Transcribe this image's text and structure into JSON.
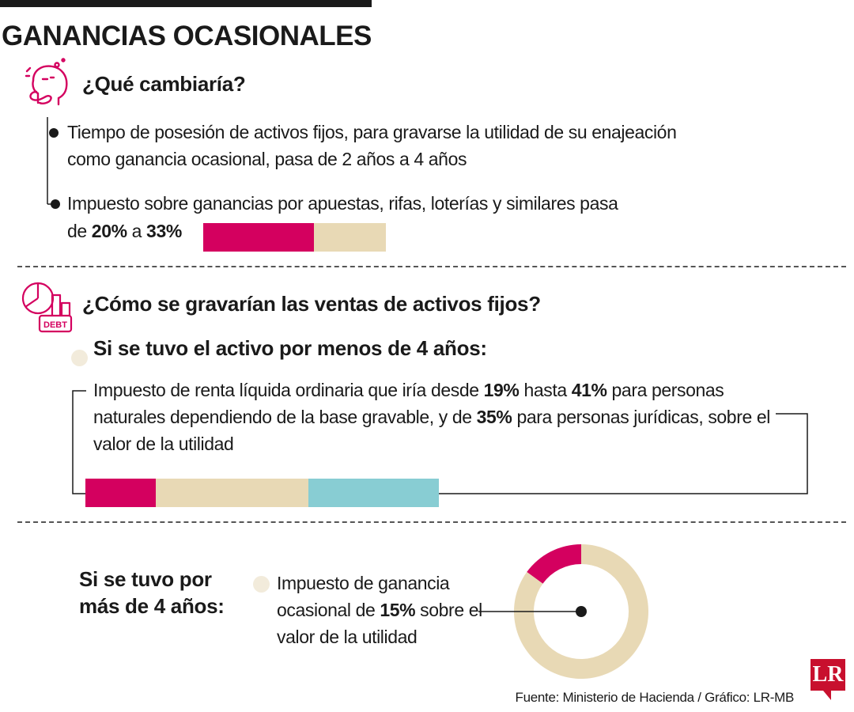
{
  "title": "GANANCIAS OCASIONALES",
  "section1": {
    "question": "¿Qué cambiaría?",
    "item1": "Tiempo de posesión de activos fijos, para gravarse la utilidad de su enajeación como ganancia ocasional, pasa de 2 años a 4 años",
    "item2_text": "Impuesto sobre ganancias por apuestas, rifas, loterías y similares pasa",
    "item2_de": "de",
    "item2_from": "20%",
    "item2_a": "a",
    "item2_to": "33%"
  },
  "section2": {
    "question": "¿Cómo se gravarían las ventas de activos fijos?",
    "icon_label": "DEBT",
    "subtitle": "Si se tuvo el activo por menos de 4 años:",
    "text_parts": {
      "p1": "Impuesto de renta líquida ordinaria que iría desde ",
      "v1": "19%",
      "p2": " hasta ",
      "v2": "41%",
      "p3": " para personas naturales dependiendo de la base gravable, y de ",
      "v3": "35%",
      "p4": " para personas jurídicas, sobre el valor de la utilidad"
    }
  },
  "section3": {
    "subtitle_line1": "Si se tuvo por",
    "subtitle_line2": "más de 4 años:",
    "text_parts": {
      "p1": "Impuesto de ganancia ocasional de ",
      "v1": "15%",
      "p2": " sobre el valor de la utilidad"
    }
  },
  "source": "Fuente: Ministerio de Hacienda / Gráfico: LR-MB",
  "logo": "LR",
  "colors": {
    "magenta": "#d4005f",
    "beige": "#e8d9b5",
    "teal": "#88cdd3",
    "cream": "#f2ebdb"
  },
  "chart_data": [
    {
      "type": "bar",
      "title": "",
      "series": [
        {
          "name": "",
          "values": [
            20
          ]
        },
        {
          "name": "",
          "values": [
            33
          ]
        }
      ],
      "note": "stacked horizontal bar: 20% magenta segment, total 33%"
    },
    {
      "type": "bar",
      "title": "",
      "series": [
        {
          "name": "",
          "values": [
            19
          ]
        },
        {
          "name": "",
          "values": [
            41
          ]
        },
        {
          "name": "",
          "values": [
            35
          ]
        }
      ],
      "note": "horizontal bar: 19% magenta, up to 41% beige, 35% teal"
    },
    {
      "type": "pie",
      "title": "",
      "values": [
        15,
        85
      ],
      "labels": [
        "15%",
        ""
      ],
      "donut": true
    }
  ]
}
